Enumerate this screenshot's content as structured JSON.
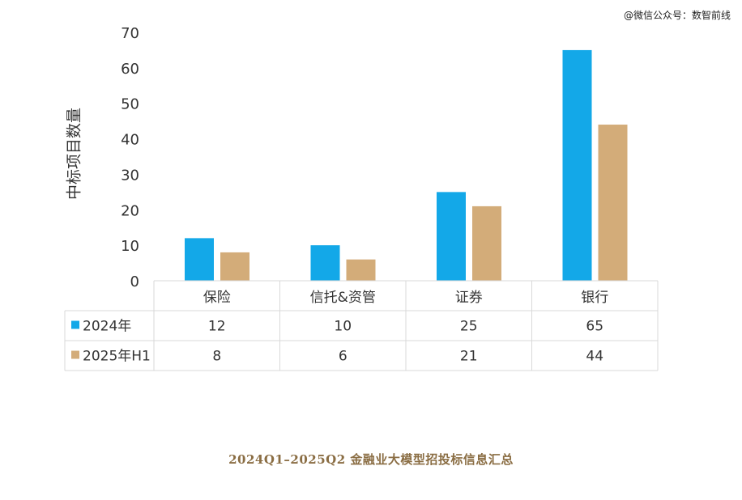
{
  "watermark": "@微信公众号：数智前线",
  "caption": "2024Q1–2025Q2 金融业大模型招投标信息汇总",
  "chart_data": {
    "type": "bar",
    "ylabel": "中标项目数量",
    "ylim": [
      0,
      70
    ],
    "yticks": [
      0,
      10,
      20,
      30,
      40,
      50,
      60,
      70
    ],
    "categories": [
      "保险",
      "信托&资管",
      "证券",
      "银行"
    ],
    "series": [
      {
        "name": "2024年",
        "color": "#13a8e8",
        "values": [
          12,
          10,
          25,
          65
        ]
      },
      {
        "name": "2025年H1",
        "color": "#d3ac79",
        "values": [
          8,
          6,
          21,
          44
        ]
      }
    ],
    "table_below": true,
    "grid": false
  }
}
